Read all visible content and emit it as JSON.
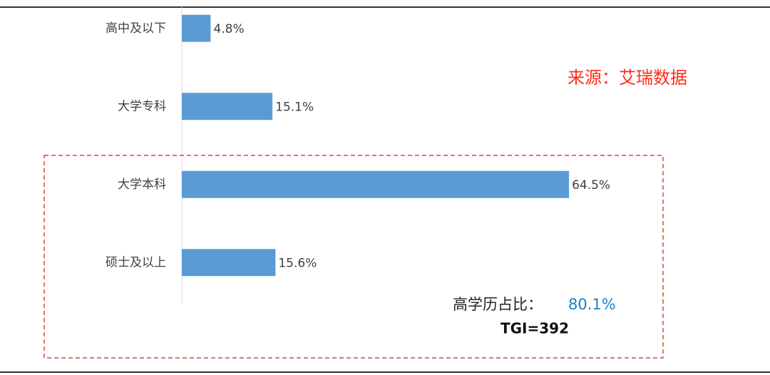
{
  "chart_data": {
    "type": "bar",
    "orientation": "horizontal",
    "categories": [
      "高中及以下",
      "大学专科",
      "大学本科",
      "硕士及以上"
    ],
    "values": [
      4.8,
      15.1,
      64.5,
      15.6
    ],
    "value_labels": [
      "4.8%",
      "15.1%",
      "64.5%",
      "15.6%"
    ],
    "color": "#5b9bd5",
    "xlim": [
      0,
      80
    ],
    "annotations": {
      "source": "来源：艾瑞数据",
      "share_label": "高学历占比：",
      "share_value": "80.1%",
      "tgi": "TGI=392"
    }
  }
}
